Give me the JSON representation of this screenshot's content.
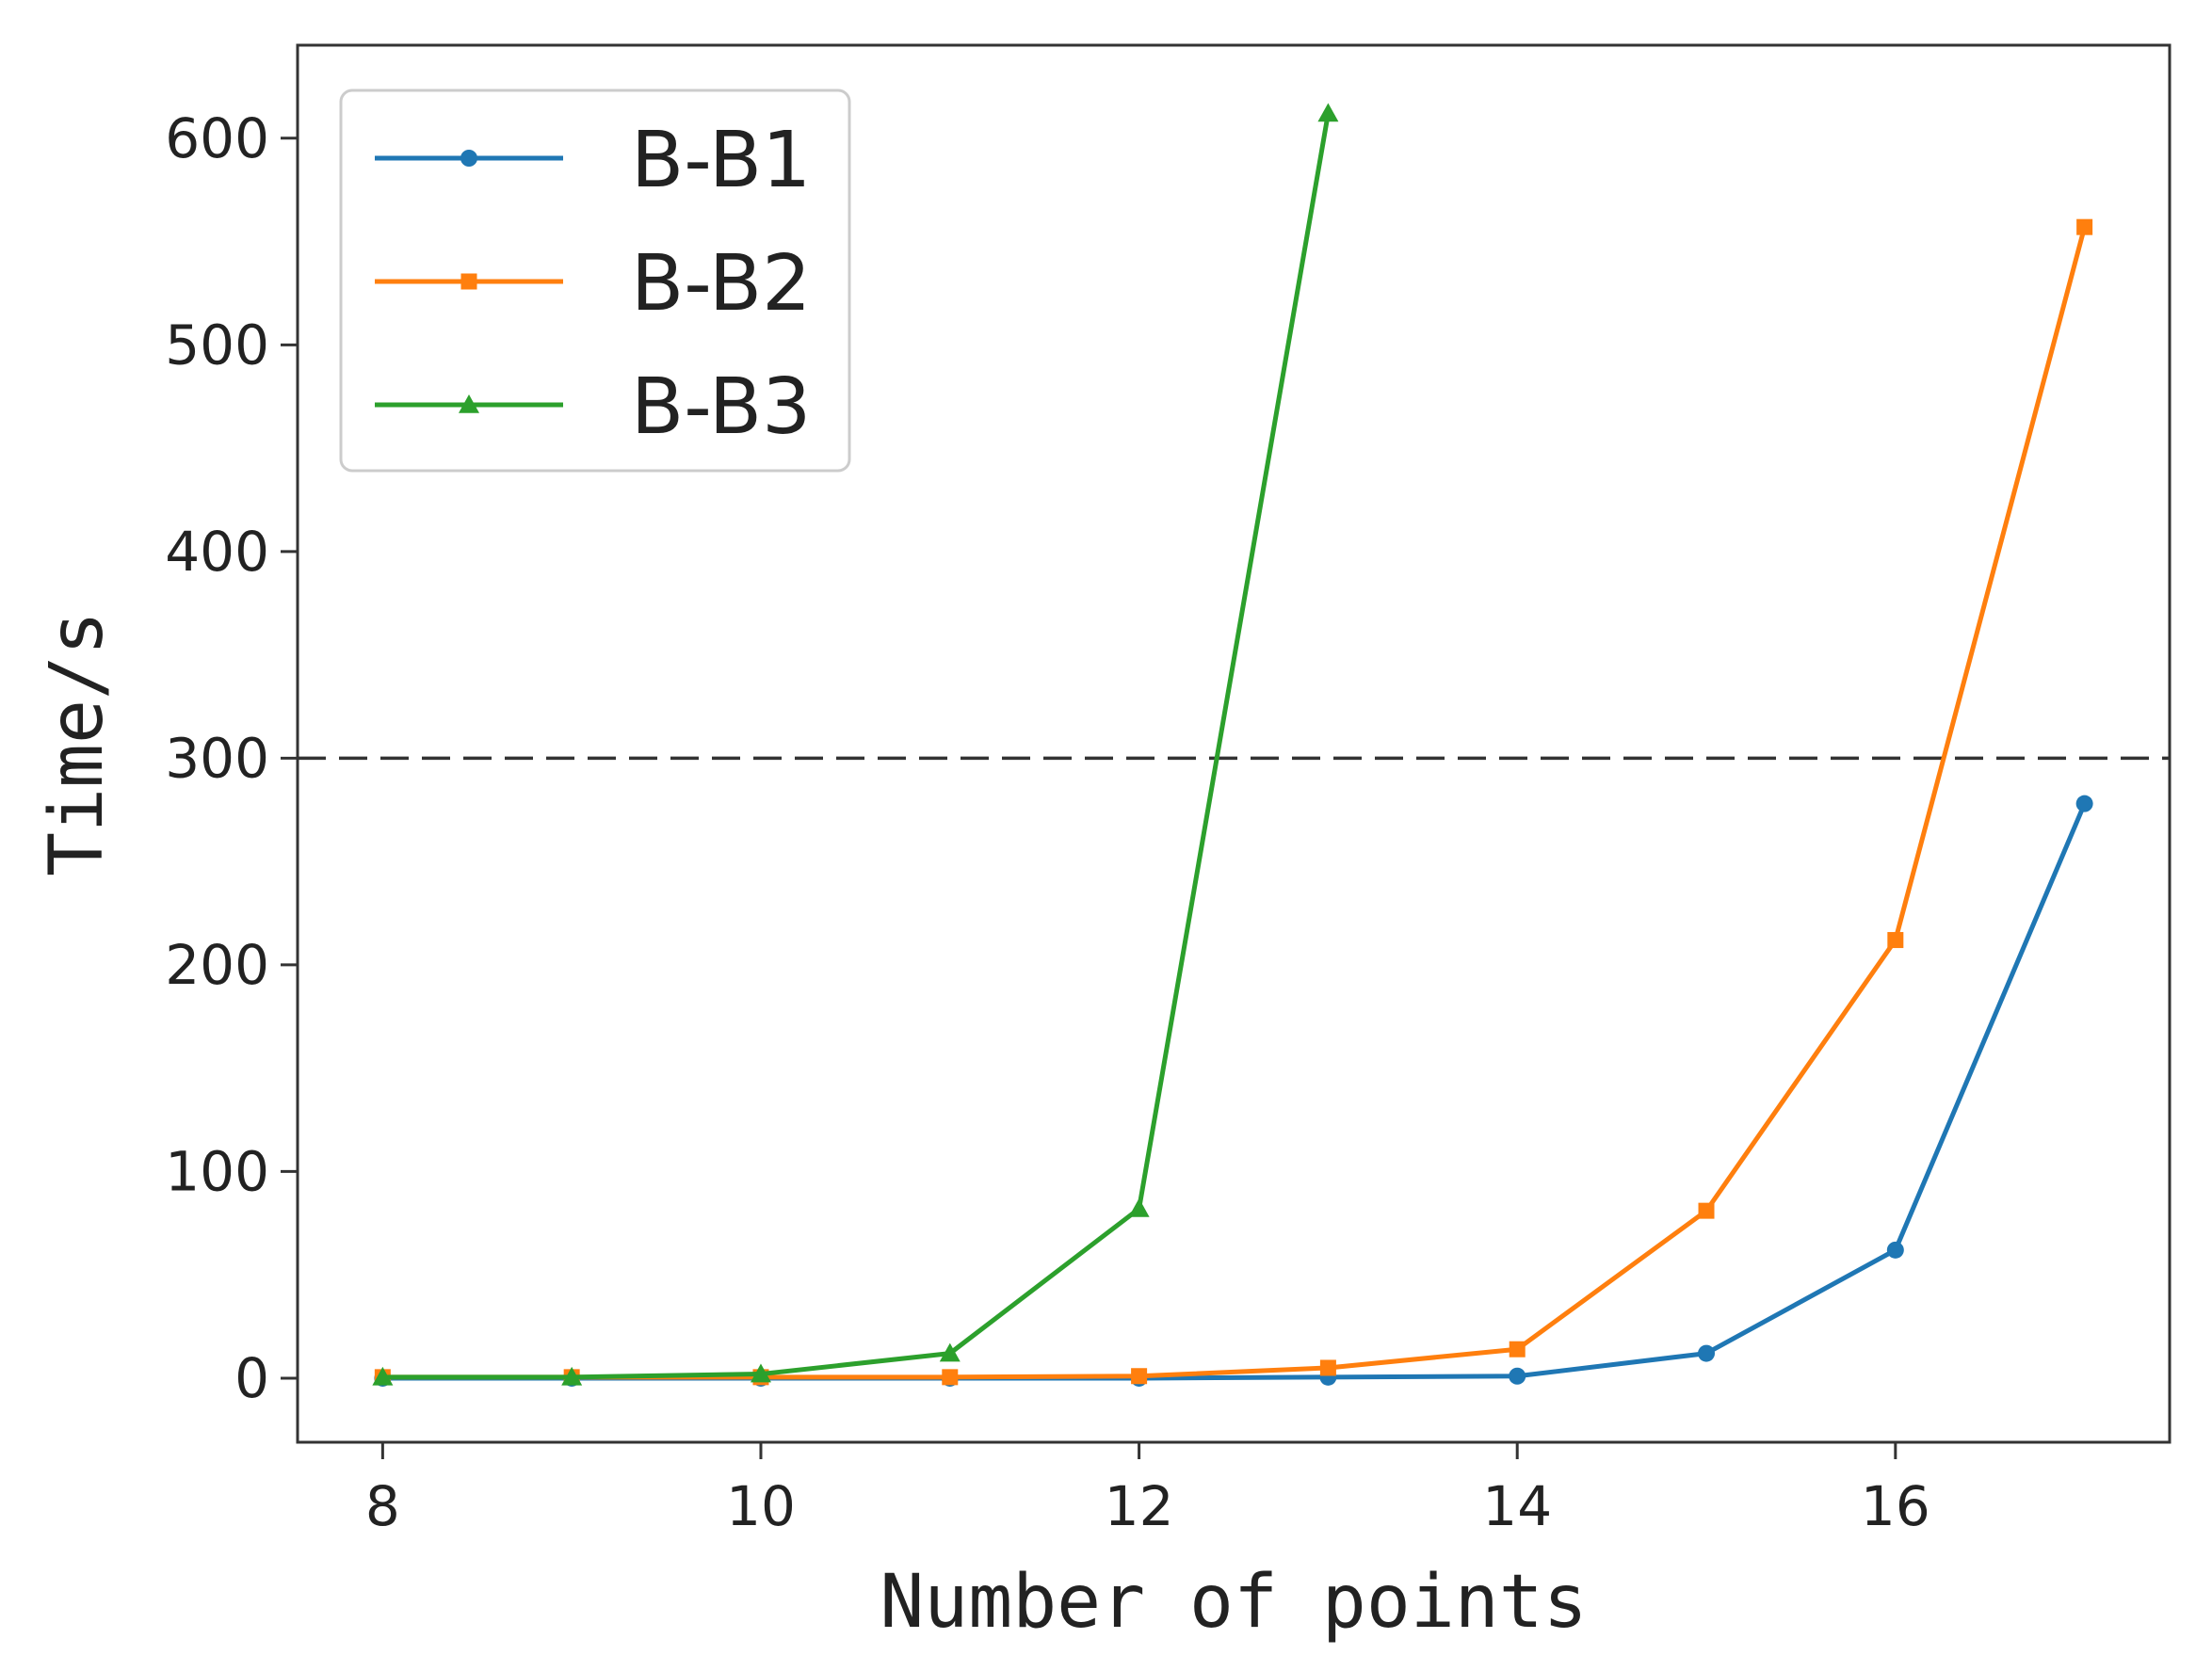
{
  "chart_data": {
    "type": "line",
    "xlabel": "Number of points",
    "ylabel": "Time/s",
    "xlim": [
      7.55,
      17.45
    ],
    "ylim": [
      -31,
      645
    ],
    "x_ticks": [
      8,
      10,
      12,
      14,
      16
    ],
    "y_ticks": [
      0,
      100,
      200,
      300,
      400,
      500,
      600
    ],
    "grid": false,
    "legend_position": "top-left",
    "reference_line": {
      "y": 300,
      "style": "dashed",
      "color": "#333333"
    },
    "series": [
      {
        "name": "B-B1",
        "color": "#1f77b4",
        "marker": "circle",
        "x": [
          8,
          9,
          10,
          11,
          12,
          13,
          14,
          15,
          16,
          17
        ],
        "y": [
          0,
          0,
          0,
          0,
          0,
          0.5,
          1,
          12,
          62,
          278
        ]
      },
      {
        "name": "B-B2",
        "color": "#ff7f0e",
        "marker": "square",
        "x": [
          8,
          9,
          10,
          11,
          12,
          13,
          14,
          15,
          16,
          17
        ],
        "y": [
          0.5,
          0.5,
          0.5,
          0.5,
          1,
          5,
          14,
          81,
          212,
          557
        ]
      },
      {
        "name": "B-B3",
        "color": "#2ca02c",
        "marker": "triangle",
        "x": [
          8,
          9,
          10,
          11,
          12,
          13
        ],
        "y": [
          0.5,
          0.5,
          2,
          12,
          82,
          612
        ]
      }
    ]
  }
}
